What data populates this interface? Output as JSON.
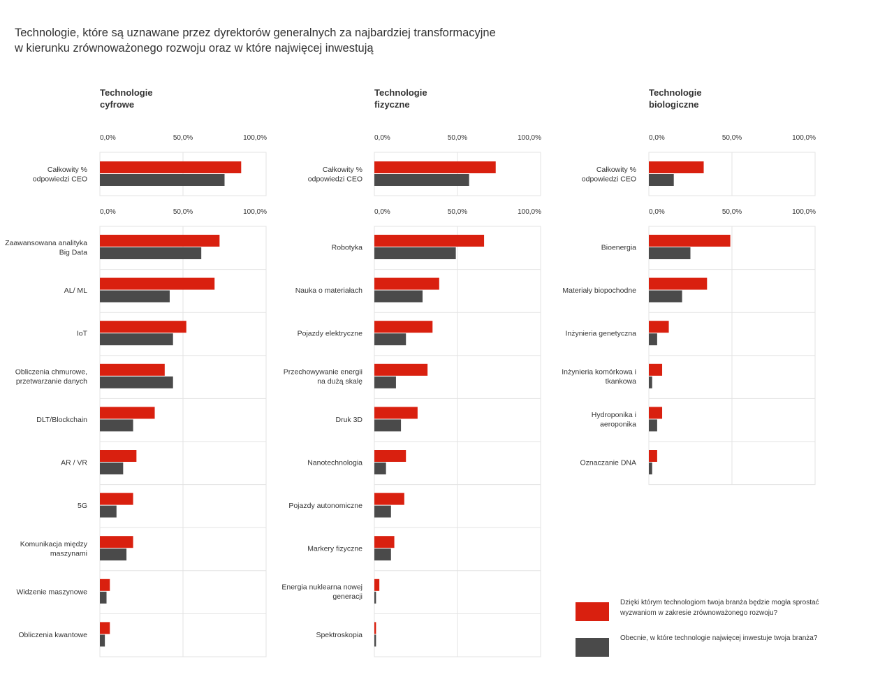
{
  "title_lines": [
    "Technologie, które są uznawane przez dyrektorów generalnych za najbardziej transformacyjne",
    "w kierunku zrównoważonego rozwoju oraz w które najwięcej inwestują"
  ],
  "colors": {
    "transform": "#d9200f",
    "invest": "#4a4a4a",
    "grid": "#e3e3e3",
    "text": "#333333"
  },
  "legend": [
    {
      "label": "Dzięki którym technologiom twoja branża będzie mogła sprostać wyzwaniom w zakresie zrównoważonego rozwoju?",
      "color": "#d9200f"
    },
    {
      "label": "Obecnie, w które technologie najwięcej inwestuje twoja branża?",
      "color": "#4a4a4a"
    }
  ],
  "chart_data": [
    {
      "type": "bar",
      "title": "Technologie cyfrowe",
      "tick_labels": [
        "0,0%",
        "50,0%",
        "100,0%"
      ],
      "xlim": [
        0,
        100
      ],
      "total": {
        "label": "Całkowity % odpowiedzi CEO",
        "values": [
          85,
          75
        ]
      },
      "categories": [
        "Zaawansowana analityka Big Data",
        "AL/ ML",
        "IoT",
        "Obliczenia chmurowe, przetwarzanie danych",
        "DLT/Blockchain",
        "AR / VR",
        "5G",
        "Komunikacja między maszynami",
        "Widzenie maszynowe",
        "Obliczenia kwantowe"
      ],
      "series": [
        {
          "values": [
            72,
            69,
            52,
            39,
            33,
            22,
            20,
            20,
            6,
            6
          ]
        },
        {
          "values": [
            61,
            42,
            44,
            44,
            20,
            14,
            10,
            16,
            4,
            3
          ]
        }
      ]
    },
    {
      "type": "bar",
      "title": "Technologie fizyczne",
      "tick_labels": [
        "0,0%",
        "50,0%",
        "100,0%"
      ],
      "xlim": [
        0,
        100
      ],
      "total": {
        "label": "Całkowity % odpowiedzi CEO",
        "values": [
          73,
          57
        ]
      },
      "categories": [
        "Robotyka",
        "Nauka o materiałach",
        "Pojazdy elektryczne",
        "Przechowywanie energii na dużą skalę",
        "Druk 3D",
        "Nanotechnologia",
        "Pojazdy autonomiczne",
        "Markery fizyczne",
        "Energia nuklearna nowej generacji",
        "Spektroskopia"
      ],
      "series": [
        {
          "values": [
            66,
            39,
            35,
            32,
            26,
            19,
            18,
            12,
            3,
            1
          ]
        },
        {
          "values": [
            49,
            29,
            19,
            13,
            16,
            7,
            10,
            10,
            1,
            1
          ]
        }
      ]
    },
    {
      "type": "bar",
      "title": "Technologie biologiczne",
      "tick_labels": [
        "0,0%",
        "50,0%",
        "100,0%"
      ],
      "xlim": [
        0,
        100
      ],
      "total": {
        "label": "Całkowity % odpowiedzi CEO",
        "values": [
          33,
          15
        ]
      },
      "categories": [
        "Bioenergia",
        "Materiały biopochodne",
        "Inżynieria genetyczna",
        "Inżynieria komórkowa i tkankowa",
        "Hydroponika i aeroponika",
        "Oznaczanie DNA"
      ],
      "series": [
        {
          "values": [
            49,
            35,
            12,
            8,
            8,
            5
          ]
        },
        {
          "values": [
            25,
            20,
            5,
            2,
            5,
            2
          ]
        }
      ]
    }
  ]
}
